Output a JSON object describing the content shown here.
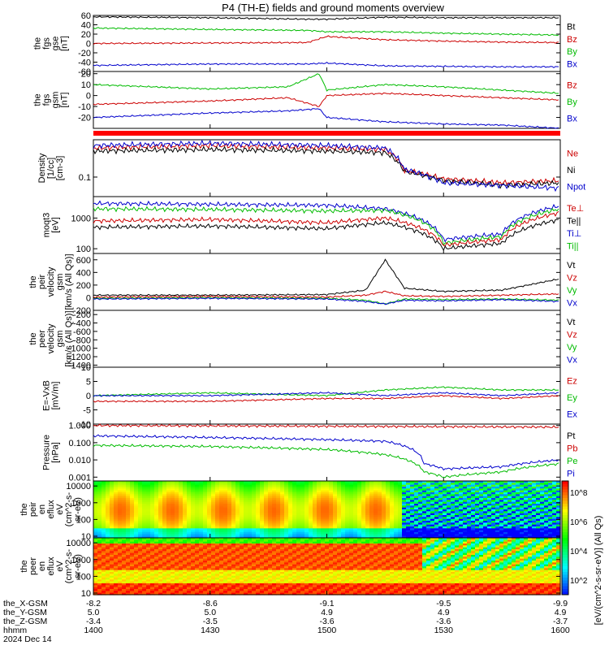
{
  "chart_data": {
    "type": "line",
    "title": "P4 (TH-E) fields and ground moments overview",
    "panels": [
      {
        "id": "fgs-gse",
        "ylabel": [
          "the",
          "fgs",
          "gse",
          "[nT]"
        ],
        "yticks": [
          "60",
          "40",
          "20",
          "0",
          "-20",
          "-40",
          "-60"
        ],
        "ylim": [
          -60,
          60
        ],
        "legend": [
          {
            "label": "Bt",
            "color": "#000000"
          },
          {
            "label": "Bz",
            "color": "#cc0000"
          },
          {
            "label": "By",
            "color": "#00bb00"
          },
          {
            "label": "Bx",
            "color": "#0000cc"
          }
        ],
        "series": [
          {
            "color": "#000000",
            "x": [
              1400,
              1430,
              1455,
              1500,
              1515,
              1530,
              1545,
              1600
            ],
            "y": [
              57,
              55,
              52,
              52,
              56,
              55,
              55,
              55
            ]
          },
          {
            "color": "#00bb00",
            "x": [
              1400,
              1430,
              1455,
              1500,
              1515,
              1530,
              1545,
              1600
            ],
            "y": [
              33,
              30,
              28,
              25,
              25,
              22,
              20,
              18
            ]
          },
          {
            "color": "#cc0000",
            "x": [
              1400,
              1430,
              1455,
              1500,
              1515,
              1530,
              1545,
              1600
            ],
            "y": [
              0,
              1,
              2,
              15,
              8,
              5,
              3,
              2
            ]
          },
          {
            "color": "#0000cc",
            "x": [
              1400,
              1430,
              1455,
              1500,
              1515,
              1530,
              1545,
              1600
            ],
            "y": [
              -47,
              -44,
              -44,
              -42,
              -48,
              -49,
              -50,
              -50
            ]
          }
        ]
      },
      {
        "id": "fgs-gsm",
        "ylabel": [
          "the",
          "fgs",
          "gsm",
          "[nT]"
        ],
        "yticks": [
          "20",
          "10",
          "0",
          "-10",
          "-20"
        ],
        "ylim": [
          -30,
          22
        ],
        "legend": [
          {
            "label": "Bz",
            "color": "#cc0000"
          },
          {
            "label": "By",
            "color": "#00bb00"
          },
          {
            "label": "Bx",
            "color": "#0000cc"
          }
        ],
        "series": [
          {
            "color": "#00bb00",
            "x": [
              1400,
              1430,
              1450,
              1458,
              1500,
              1515,
              1530,
              1545,
              1600
            ],
            "y": [
              10,
              6,
              8,
              20,
              5,
              10,
              8,
              5,
              2
            ]
          },
          {
            "color": "#cc0000",
            "x": [
              1400,
              1430,
              1450,
              1458,
              1500,
              1515,
              1530,
              1545,
              1600
            ],
            "y": [
              -8,
              -5,
              -2,
              -10,
              0,
              2,
              0,
              -2,
              -4
            ]
          },
          {
            "color": "#0000cc",
            "x": [
              1400,
              1430,
              1450,
              1458,
              1500,
              1515,
              1530,
              1545,
              1600
            ],
            "y": [
              -20,
              -16,
              -14,
              -12,
              -20,
              -24,
              -26,
              -27,
              -30
            ]
          }
        ]
      },
      {
        "id": "density",
        "ylabel": [
          "Density",
          "[1/cc]",
          "[cm-3]"
        ],
        "yticks": [
          "0.1"
        ],
        "ylim": [
          0.03,
          1.0
        ],
        "log": true,
        "legend": [
          {
            "label": "Ne",
            "color": "#cc0000"
          },
          {
            "label": "Ni",
            "color": "#000000"
          },
          {
            "label": "Npot",
            "color": "#0000cc"
          }
        ],
        "series": [
          {
            "color": "#cc0000",
            "x": [
              1400,
              1430,
              1500,
              1515,
              1520,
              1530,
              1545,
              1600
            ],
            "y": [
              0.6,
              0.7,
              0.6,
              0.55,
              0.15,
              0.09,
              0.07,
              0.08
            ]
          },
          {
            "color": "#000000",
            "x": [
              1400,
              1430,
              1500,
              1515,
              1520,
              1530,
              1545,
              1600
            ],
            "y": [
              0.5,
              0.55,
              0.5,
              0.45,
              0.14,
              0.08,
              0.06,
              0.07
            ]
          },
          {
            "color": "#0000cc",
            "x": [
              1400,
              1430,
              1500,
              1515,
              1520,
              1530,
              1545,
              1600
            ],
            "y": [
              0.7,
              0.8,
              0.7,
              0.6,
              0.16,
              0.07,
              0.06,
              0.05
            ]
          }
        ]
      },
      {
        "id": "temperature",
        "ylabel": [
          "moqt3",
          "[eV]"
        ],
        "yticks": [
          "1000",
          "100"
        ],
        "ylim": [
          70,
          5000
        ],
        "log": true,
        "legend": [
          {
            "label": "Te⊥",
            "color": "#cc0000"
          },
          {
            "label": "Te||",
            "color": "#000000"
          },
          {
            "label": "Ti⊥",
            "color": "#0000cc"
          },
          {
            "label": "Ti||",
            "color": "#00bb00"
          }
        ],
        "series": [
          {
            "color": "#0000cc",
            "x": [
              1400,
              1430,
              1500,
              1515,
              1530,
              1545,
              1600
            ],
            "y": [
              3000,
              2800,
              2600,
              2000,
              200,
              300,
              2500
            ]
          },
          {
            "color": "#00bb00",
            "x": [
              1400,
              1430,
              1500,
              1515,
              1530,
              1545,
              1600
            ],
            "y": [
              2000,
              1900,
              1700,
              1800,
              150,
              250,
              2000
            ]
          },
          {
            "color": "#cc0000",
            "x": [
              1400,
              1430,
              1500,
              1515,
              1530,
              1545,
              1600
            ],
            "y": [
              800,
              900,
              700,
              1000,
              130,
              200,
              1500
            ]
          },
          {
            "color": "#000000",
            "x": [
              1400,
              1430,
              1500,
              1515,
              1530,
              1545,
              1600
            ],
            "y": [
              500,
              550,
              450,
              700,
              100,
              150,
              900
            ]
          }
        ]
      },
      {
        "id": "peir-velocity",
        "ylabel": [
          "the",
          "peir",
          "velocity",
          "gsm",
          "[km/s (All Qs)]"
        ],
        "yticks": [
          "600",
          "400",
          "200",
          "0",
          "-200"
        ],
        "ylim": [
          -200,
          700
        ],
        "legend": [
          {
            "label": "Vt",
            "color": "#000000"
          },
          {
            "label": "Vz",
            "color": "#cc0000"
          },
          {
            "label": "Vy",
            "color": "#00bb00"
          },
          {
            "label": "Vx",
            "color": "#0000cc"
          }
        ],
        "series": [
          {
            "color": "#000000",
            "x": [
              1400,
              1430,
              1500,
              1510,
              1515,
              1520,
              1530,
              1545,
              1600
            ],
            "y": [
              40,
              40,
              50,
              120,
              600,
              150,
              100,
              120,
              300
            ]
          },
          {
            "color": "#cc0000",
            "x": [
              1400,
              1430,
              1500,
              1510,
              1515,
              1520,
              1530,
              1545,
              1600
            ],
            "y": [
              10,
              20,
              10,
              40,
              100,
              30,
              20,
              40,
              60
            ]
          },
          {
            "color": "#00bb00",
            "x": [
              1400,
              1430,
              1500,
              1510,
              1515,
              1520,
              1530,
              1545,
              1600
            ],
            "y": [
              -10,
              0,
              -10,
              -40,
              -100,
              -20,
              -30,
              -20,
              -40
            ]
          },
          {
            "color": "#0000cc",
            "x": [
              1400,
              1430,
              1500,
              1510,
              1515,
              1520,
              1530,
              1545,
              1600
            ],
            "y": [
              -20,
              -10,
              -20,
              -60,
              -100,
              -40,
              -50,
              -30,
              -60
            ]
          }
        ]
      },
      {
        "id": "peer-velocity",
        "ylabel": [
          "the",
          "peer",
          "velocity",
          "gsm",
          "[km/s (All Qs)]"
        ],
        "yticks": [
          "-200",
          "-400",
          "-600",
          "-800",
          "-1000",
          "-1200",
          "-1400"
        ],
        "ylim": [
          -1450,
          -100
        ],
        "legend": [
          {
            "label": "Vt",
            "color": "#000000"
          },
          {
            "label": "Vz",
            "color": "#cc0000"
          },
          {
            "label": "Vy",
            "color": "#00bb00"
          },
          {
            "label": "Vx",
            "color": "#0000cc"
          }
        ],
        "series": []
      },
      {
        "id": "efield",
        "ylabel": [
          "E=-VxB",
          "[mV/m]"
        ],
        "yticks": [
          "10",
          "5",
          "0",
          "-5",
          "-10"
        ],
        "ylim": [
          -10,
          10
        ],
        "legend": [
          {
            "label": "Ez",
            "color": "#cc0000"
          },
          {
            "label": "Ey",
            "color": "#00bb00"
          },
          {
            "label": "Ex",
            "color": "#0000cc"
          }
        ],
        "series": [
          {
            "color": "#00bb00",
            "x": [
              1400,
              1430,
              1500,
              1515,
              1530,
              1545,
              1600
            ],
            "y": [
              0,
              1,
              0,
              2,
              3,
              2,
              2
            ]
          },
          {
            "color": "#cc0000",
            "x": [
              1400,
              1430,
              1500,
              1515,
              1530,
              1545,
              1600
            ],
            "y": [
              -2,
              -2,
              -1,
              -1,
              0,
              -1,
              0
            ]
          },
          {
            "color": "#0000cc",
            "x": [
              1400,
              1430,
              1500,
              1515,
              1530,
              1545,
              1600
            ],
            "y": [
              0,
              0,
              1,
              0,
              1,
              0,
              1
            ]
          }
        ]
      },
      {
        "id": "pressure",
        "ylabel": [
          "Pressure",
          "[nPa]"
        ],
        "yticks": [
          "1.000",
          "0.100",
          "0.010",
          "0.001"
        ],
        "ylim": [
          0.0006,
          1.2
        ],
        "log": true,
        "legend": [
          {
            "label": "Pt",
            "color": "#000000"
          },
          {
            "label": "Pb",
            "color": "#cc0000"
          },
          {
            "label": "Pe",
            "color": "#00bb00"
          },
          {
            "label": "Pi",
            "color": "#0000cc"
          }
        ],
        "series": [
          {
            "color": "#cc0000",
            "x": [
              1400,
              1430,
              1500,
              1530,
              1600
            ],
            "y": [
              1.0,
              0.95,
              0.9,
              0.85,
              0.8
            ]
          },
          {
            "color": "#0000cc",
            "x": [
              1400,
              1430,
              1500,
              1515,
              1525,
              1530,
              1545,
              1600
            ],
            "y": [
              0.25,
              0.2,
              0.15,
              0.12,
              0.006,
              0.003,
              0.004,
              0.01
            ]
          },
          {
            "color": "#00bb00",
            "x": [
              1400,
              1430,
              1500,
              1515,
              1525,
              1530,
              1545,
              1600
            ],
            "y": [
              0.07,
              0.06,
              0.04,
              0.02,
              0.002,
              0.001,
              0.002,
              0.006
            ]
          }
        ]
      },
      {
        "id": "peir-spectrogram",
        "ylabel": [
          "the",
          "peir",
          "en",
          "eflux",
          "eV",
          "(cm^2-s-",
          "sr-eV)"
        ],
        "yticks": [
          "10000",
          "1000",
          "100",
          "10"
        ],
        "ylim": [
          8,
          20000
        ],
        "log": true,
        "kind": "spectrogram"
      },
      {
        "id": "peer-spectrogram",
        "ylabel": [
          "the",
          "peer",
          "en",
          "eflux",
          "eV",
          "(cm^2-s-",
          "sr-eV)"
        ],
        "yticks": [
          "10000",
          "1000",
          "100",
          "10"
        ],
        "ylim": [
          8,
          20000
        ],
        "log": true,
        "kind": "spectrogram"
      }
    ],
    "colorbar": {
      "labels": [
        "10^8",
        "10^6",
        "10^4",
        "10^2"
      ],
      "unit": "[eV/(cm^2-s-sr-eV)] (All Qs)"
    },
    "x_axis": {
      "range": [
        1400,
        1600
      ],
      "row_labels": [
        "the_X-GSM",
        "the_Y-GSM",
        "the_Z-GSM",
        "hhmm",
        "2024 Dec 14"
      ],
      "ticks": [
        {
          "x": 1400,
          "values": [
            "-8.2",
            "5.0",
            "-3.4",
            "1400"
          ]
        },
        {
          "x": 1430,
          "values": [
            "-8.6",
            "5.0",
            "-3.5",
            "1430"
          ]
        },
        {
          "x": 1500,
          "values": [
            "-9.1",
            "4.9",
            "-3.6",
            "1500"
          ]
        },
        {
          "x": 1530,
          "values": [
            "-9.5",
            "4.9",
            "-3.6",
            "1530"
          ]
        },
        {
          "x": 1600,
          "values": [
            "-9.9",
            "4.9",
            "-3.7",
            "1600"
          ]
        }
      ]
    }
  }
}
